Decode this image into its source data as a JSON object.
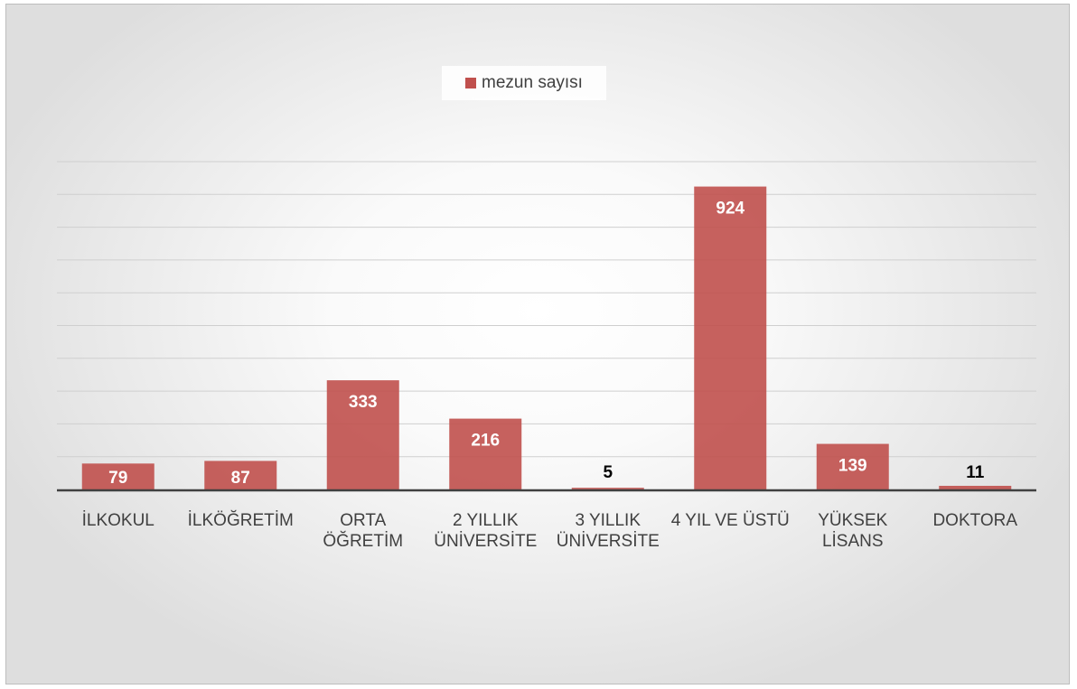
{
  "chart_data": {
    "type": "bar",
    "categories": [
      [
        "İLKOKUL"
      ],
      [
        "İLKÖĞRETİM"
      ],
      [
        "ORTA",
        "ÖĞRETİM"
      ],
      [
        "2 YILLIK",
        "ÜNİVERSİTE"
      ],
      [
        "3 YILLIK",
        "ÜNİVERSİTE"
      ],
      [
        "4 YIL VE ÜSTÜ"
      ],
      [
        "YÜKSEK",
        "LİSANS"
      ],
      [
        "DOKTORA"
      ]
    ],
    "series": [
      {
        "name": "mezun sayısı",
        "values": [
          79,
          87,
          333,
          216,
          5,
          924,
          139,
          11
        ]
      }
    ],
    "ylim": [
      0,
      1000
    ],
    "grid": true,
    "legend": "top-center",
    "bar_color": "#c0504d",
    "label_inside_color": "#ffffff",
    "label_outside_color": "#000000",
    "axis_color": "#404040",
    "grid_color": "#cfcfcf"
  }
}
